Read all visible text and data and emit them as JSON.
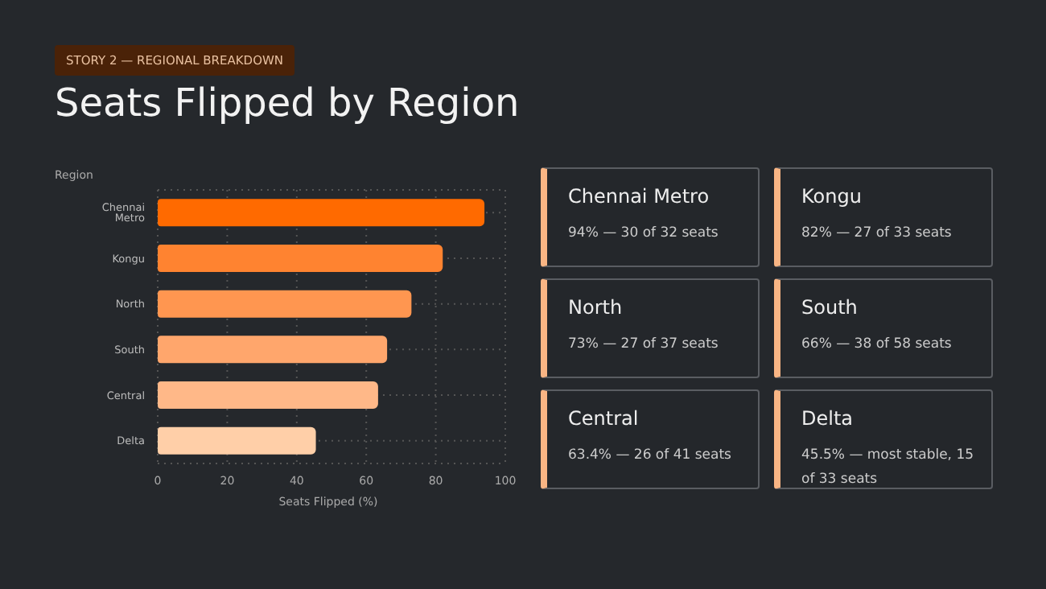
{
  "chart_data": [
    {
      "type": "bar",
      "orientation": "horizontal",
      "subtitle": "STORY 2 — REGIONAL BREAKDOWN",
      "title": "Seats Flipped by Region",
      "ylabel": "Region",
      "xlabel": "Seats Flipped (%)",
      "categories": [
        "Chennai Metro",
        "Kongu",
        "North",
        "South",
        "Central",
        "Delta"
      ],
      "values": [
        94,
        82,
        73,
        66,
        63.4,
        45.5
      ],
      "colors": [
        "#ff6a00",
        "#ff8330",
        "#ff9650",
        "#ffa66c",
        "#ffb888",
        "#ffcfa8"
      ],
      "xlim": [
        0,
        100
      ],
      "xticks": [
        0,
        20,
        40,
        60,
        80,
        100
      ],
      "grid": true
    },
    {
      "type": "other",
      "categories": [
        "Chennai Metro",
        "Kongu",
        "North",
        "South",
        "Central",
        "Delta"
      ],
      "annotations": [
        "94% — 30 of 32 seats",
        "82% — 27 of 33 seats",
        "73% — 27 of 37 seats",
        "66% — 38 of 58 seats",
        "63.4% — 26 of 41 seats",
        "45.5% — most stable, 15 of 33 seats"
      ],
      "color": "#f9b584"
    }
  ]
}
